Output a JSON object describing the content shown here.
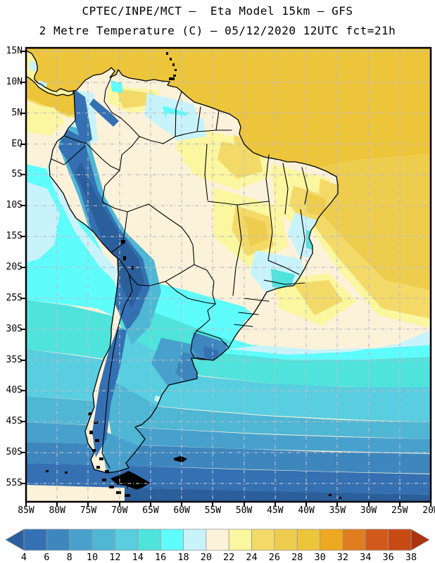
{
  "title": {
    "line1": "CPTEC/INPE/MCT –  Eta Model 15km – GFS",
    "line2": "2 Metre Temperature (C) – 05/12/2020 12UTC fct=21h"
  },
  "map": {
    "y_axis_labels": [
      "15N",
      "10N",
      "5N",
      "EQ",
      "5S",
      "10S",
      "15S",
      "20S",
      "25S",
      "30S",
      "35S",
      "40S",
      "45S",
      "50S",
      "55S"
    ],
    "x_axis_labels": [
      "85W",
      "80W",
      "75W",
      "70W",
      "65W",
      "60W",
      "55W",
      "50W",
      "45W",
      "40W",
      "35W",
      "30W",
      "25W",
      "20W"
    ]
  },
  "colorbar": {
    "tick_labels": [
      "4",
      "6",
      "8",
      "10",
      "12",
      "14",
      "16",
      "18",
      "20",
      "22",
      "24",
      "26",
      "28",
      "30",
      "32",
      "34",
      "36",
      "38"
    ],
    "segment_colors": [
      "#3470b2",
      "#3d86be",
      "#47a1cc",
      "#4fb6d4",
      "#58cee0",
      "#4fe3dc",
      "#5ffcfc",
      "#c9f3fb",
      "#fcf2da",
      "#fbf6a0",
      "#f3da68",
      "#eecd4e",
      "#edc53b",
      "#eda921",
      "#e07d1f",
      "#d1591b",
      "#c64a12"
    ],
    "arrow_left_color": "#2a5f9b",
    "arrow_right_color": "#ad330e",
    "outline_color": "#999999"
  },
  "palette": {
    "lt4": "#2a5f9b",
    "t4": "#3470b2",
    "t6": "#3d86be",
    "t8": "#47a1cc",
    "t10": "#4fb6d4",
    "t12": "#58cee0",
    "t14": "#4fe3dc",
    "t16": "#5ffcfc",
    "t18": "#c9f3fb",
    "t20": "#fcf2da",
    "t22": "#fbf6a0",
    "t24": "#f3da68",
    "t26": "#eecd4e",
    "t28": "#edc53b",
    "t30": "#eda921",
    "t32": "#e07d1f",
    "t34": "#d1591b",
    "t36": "#c64a12",
    "gt38": "#ad330e"
  },
  "colors": {
    "background": "#ffffff",
    "text": "#000000",
    "grid": "#bcbcc6",
    "coastline": "#000000",
    "frame": "#000000",
    "island_fill": "#000000"
  }
}
